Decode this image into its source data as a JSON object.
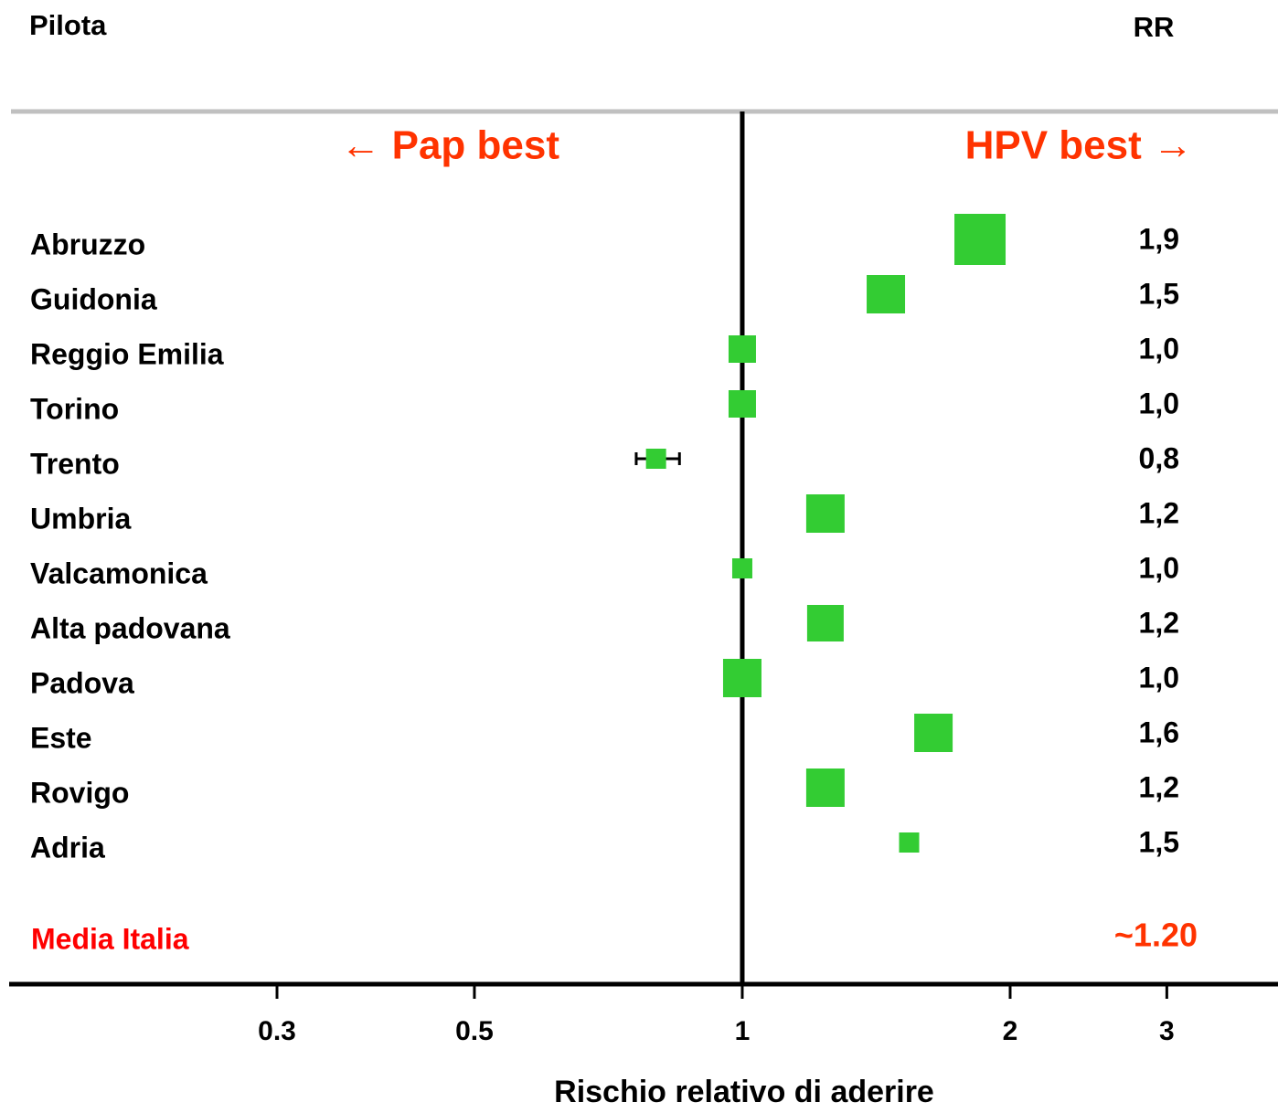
{
  "chart_data": {
    "type": "forest",
    "column_left_title": "Pilota",
    "column_right_title": "RR",
    "left_annotation": "← Pap best",
    "right_annotation": "HPV best →",
    "categories": [
      "Abruzzo",
      "Guidonia",
      "Reggio Emilia",
      "Torino",
      "Trento",
      "Umbria",
      "Valcamonica",
      "Alta padovana",
      "Padova",
      "Este",
      "Rovigo",
      "Adria"
    ],
    "values": [
      1.85,
      1.45,
      1.0,
      1.0,
      0.8,
      1.24,
      1.0,
      1.24,
      1.0,
      1.64,
      1.24,
      1.54
    ],
    "value_labels": [
      "1,9",
      "1,5",
      "1,0",
      "1,0",
      "0,8",
      "1,2",
      "1,0",
      "1,2",
      "1,0",
      "1,6",
      "1,2",
      "1,5"
    ],
    "weights": [
      56,
      42,
      30,
      30,
      22,
      42,
      22,
      40,
      42,
      42,
      42,
      22
    ],
    "ci": [
      null,
      null,
      null,
      null,
      [
        0.76,
        0.85
      ],
      null,
      null,
      null,
      null,
      null,
      null,
      null
    ],
    "summary_label": "Media Italia",
    "summary_value_label": "~1.20",
    "color": "#33cc33",
    "ref_line": 1,
    "log_x": true,
    "xlim": [
      0.15,
      4
    ],
    "xticks": [
      0.3,
      0.5,
      1,
      2,
      3
    ],
    "x_label": "Rischio relativo di aderire"
  }
}
